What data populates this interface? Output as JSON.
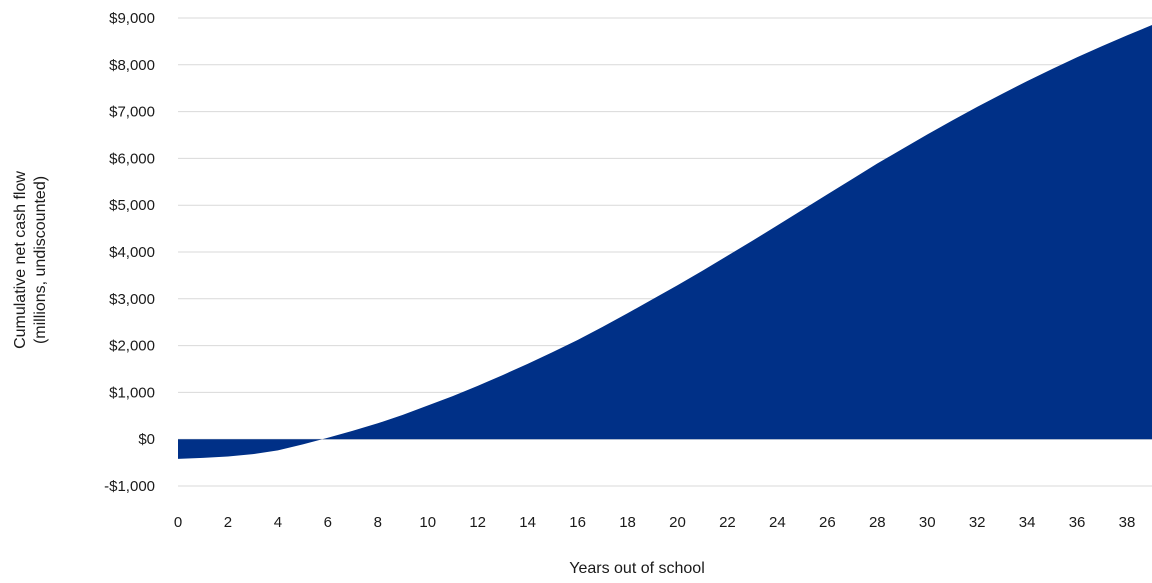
{
  "chart_data": {
    "type": "area",
    "title": "",
    "xlabel": "Years out of school",
    "ylabel": [
      "Cumulative net cash flow",
      "(millions, undiscounted)"
    ],
    "x_ticks": [
      "0",
      "2",
      "4",
      "6",
      "8",
      "10",
      "12",
      "14",
      "16",
      "18",
      "20",
      "22",
      "24",
      "26",
      "28",
      "30",
      "32",
      "34",
      "36",
      "38"
    ],
    "y_ticks": [
      {
        "value": -1000,
        "label": "-$1,000"
      },
      {
        "value": 0,
        "label": "$0"
      },
      {
        "value": 1000,
        "label": "$1,000"
      },
      {
        "value": 2000,
        "label": "$2,000"
      },
      {
        "value": 3000,
        "label": "$3,000"
      },
      {
        "value": 4000,
        "label": "$4,000"
      },
      {
        "value": 5000,
        "label": "$5,000"
      },
      {
        "value": 6000,
        "label": "$6,000"
      },
      {
        "value": 7000,
        "label": "$7,000"
      },
      {
        "value": 8000,
        "label": "$8,000"
      },
      {
        "value": 9000,
        "label": "$9,000"
      }
    ],
    "xlim": [
      0,
      39
    ],
    "ylim": [
      -1000,
      9000
    ],
    "grid": true,
    "color": "#003087",
    "series": [
      {
        "x": [
          0,
          1,
          2,
          3,
          4,
          5,
          6,
          7,
          8,
          9,
          10,
          11,
          12,
          13,
          14,
          15,
          16,
          17,
          18,
          19,
          20,
          21,
          22,
          23,
          24,
          25,
          26,
          27,
          28,
          29,
          30,
          31,
          32,
          33,
          34,
          35,
          36,
          37,
          38,
          39
        ],
        "values": [
          -420,
          -400,
          -370,
          -320,
          -240,
          -110,
          30,
          180,
          340,
          520,
          720,
          920,
          1140,
          1370,
          1610,
          1860,
          2120,
          2400,
          2690,
          2990,
          3290,
          3600,
          3920,
          4240,
          4570,
          4900,
          5230,
          5560,
          5890,
          6200,
          6510,
          6810,
          7100,
          7380,
          7650,
          7910,
          8160,
          8400,
          8630,
          8850
        ]
      }
    ]
  }
}
